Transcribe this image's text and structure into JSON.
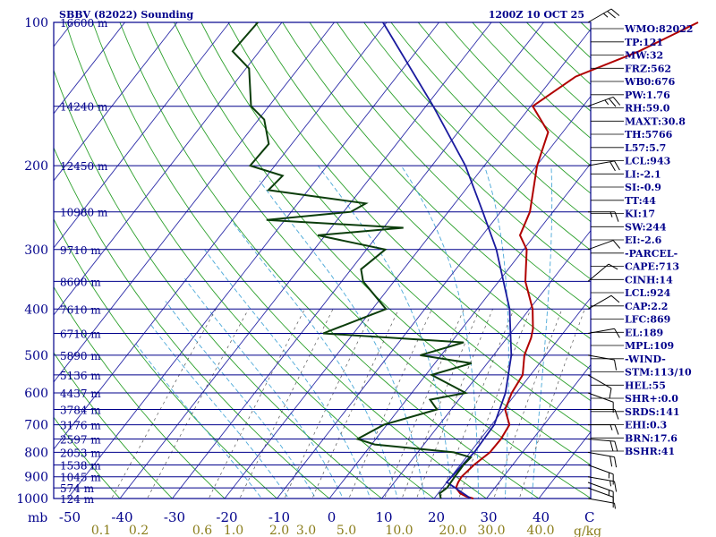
{
  "chart_data": {
    "type": "skew-t",
    "title": "SBBV (82022) Sounding",
    "valid_time": "1200Z 10 OCT 25",
    "y_axis_unit": "mb",
    "x_axis_unit": "C",
    "mixing_ratio_unit": "g/kg",
    "pressure_ticks": [
      "100",
      "200",
      "300",
      "400",
      "500",
      "600",
      "700",
      "800",
      "900",
      "1000"
    ],
    "height_labels": [
      {
        "p": 100,
        "label": "16600 m"
      },
      {
        "p": 150,
        "label": "14240 m"
      },
      {
        "p": 200,
        "label": "12450 m"
      },
      {
        "p": 250,
        "label": "10980 m"
      },
      {
        "p": 300,
        "label": "9710 m"
      },
      {
        "p": 350,
        "label": "8600 m"
      },
      {
        "p": 400,
        "label": "7610 m"
      },
      {
        "p": 450,
        "label": "6710 m"
      },
      {
        "p": 500,
        "label": "5890 m"
      },
      {
        "p": 550,
        "label": "5136 m"
      },
      {
        "p": 600,
        "label": "4437 m"
      },
      {
        "p": 650,
        "label": "3784 m"
      },
      {
        "p": 700,
        "label": "3176 m"
      },
      {
        "p": 750,
        "label": "2597 m"
      },
      {
        "p": 800,
        "label": "2053 m"
      },
      {
        "p": 850,
        "label": "1538 m"
      },
      {
        "p": 900,
        "label": "1045 m"
      },
      {
        "p": 950,
        "label": "574 m"
      },
      {
        "p": 1000,
        "label": "124 m"
      }
    ],
    "temp_ticks": [
      "-50",
      "-40",
      "-30",
      "-20",
      "-10",
      "0",
      "10",
      "20",
      "30",
      "40"
    ],
    "mixing_ratio_labels": [
      "0.1",
      "0.2",
      "0.6",
      "1.0",
      "2.0",
      "3.0",
      "5.0",
      "10.0",
      "20.0",
      "30.0",
      "40.0"
    ],
    "temperature": [
      {
        "p": 1000,
        "t": 27.5
      },
      {
        "p": 990,
        "t": 25.8
      },
      {
        "p": 975,
        "t": 24.2
      },
      {
        "p": 950,
        "t": 22.6
      },
      {
        "p": 925,
        "t": 22.2
      },
      {
        "p": 900,
        "t": 22.0
      },
      {
        "p": 850,
        "t": 22.6
      },
      {
        "p": 800,
        "t": 23.8
      },
      {
        "p": 750,
        "t": 23.9
      },
      {
        "p": 700,
        "t": 23.4
      },
      {
        "p": 650,
        "t": 20.3
      },
      {
        "p": 600,
        "t": 19.1
      },
      {
        "p": 550,
        "t": 18.5
      },
      {
        "p": 500,
        "t": 15.9
      },
      {
        "p": 460,
        "t": 14.6
      },
      {
        "p": 440,
        "t": 13.6
      },
      {
        "p": 400,
        "t": 10.6
      },
      {
        "p": 350,
        "t": 5.1
      },
      {
        "p": 300,
        "t": 0.6
      },
      {
        "p": 280,
        "t": -2.8
      },
      {
        "p": 250,
        "t": -4.4
      },
      {
        "p": 200,
        "t": -9.9
      },
      {
        "p": 170,
        "t": -12.8
      },
      {
        "p": 150,
        "t": -19.6
      },
      {
        "p": 130,
        "t": -15.8
      },
      {
        "p": 115,
        "t": -7.5
      },
      {
        "p": 100,
        "t": -0.5
      }
    ],
    "dewpoint": [
      {
        "p": 1000,
        "t": 21.3
      },
      {
        "p": 975,
        "t": 20.3
      },
      {
        "p": 950,
        "t": 20.9
      },
      {
        "p": 925,
        "t": 20.8
      },
      {
        "p": 900,
        "t": 20.7
      },
      {
        "p": 850,
        "t": 20.6
      },
      {
        "p": 820,
        "t": 20.9
      },
      {
        "p": 800,
        "t": 16.9
      },
      {
        "p": 770,
        "t": 0.6
      },
      {
        "p": 750,
        "t": -3.5
      },
      {
        "p": 700,
        "t": -0.6
      },
      {
        "p": 650,
        "t": 7.3
      },
      {
        "p": 620,
        "t": 4.5
      },
      {
        "p": 600,
        "t": 10.3
      },
      {
        "p": 550,
        "t": 1.1
      },
      {
        "p": 520,
        "t": 7.0
      },
      {
        "p": 500,
        "t": -4.0
      },
      {
        "p": 470,
        "t": 2.4
      },
      {
        "p": 450,
        "t": -25.8
      },
      {
        "p": 400,
        "t": -17.4
      },
      {
        "p": 350,
        "t": -25.9
      },
      {
        "p": 330,
        "t": -28.1
      },
      {
        "p": 300,
        "t": -26.4
      },
      {
        "p": 280,
        "t": -41.4
      },
      {
        "p": 270,
        "t": -26.2
      },
      {
        "p": 260,
        "t": -53.5
      },
      {
        "p": 250,
        "t": -38.6
      },
      {
        "p": 240,
        "t": -37.0
      },
      {
        "p": 225,
        "t": -57.6
      },
      {
        "p": 210,
        "t": -57.0
      },
      {
        "p": 200,
        "t": -64.7
      },
      {
        "p": 180,
        "t": -64.4
      },
      {
        "p": 160,
        "t": -68.9
      },
      {
        "p": 150,
        "t": -73.4
      },
      {
        "p": 125,
        "t": -79.4
      },
      {
        "p": 115,
        "t": -85.1
      },
      {
        "p": 100,
        "t": -84.6
      }
    ],
    "parcel": [
      {
        "p": 1000,
        "t": 27.0
      },
      {
        "p": 924,
        "t": 20.0
      },
      {
        "p": 850,
        "t": 20.4
      },
      {
        "p": 800,
        "t": 20.8
      },
      {
        "p": 700,
        "t": 20.5
      },
      {
        "p": 600,
        "t": 17.9
      },
      {
        "p": 500,
        "t": 13.4
      },
      {
        "p": 400,
        "t": 6.2
      },
      {
        "p": 300,
        "t": -5.2
      },
      {
        "p": 250,
        "t": -13.4
      },
      {
        "p": 200,
        "t": -23.6
      },
      {
        "p": 150,
        "t": -38.6
      },
      {
        "p": 100,
        "t": -60.7
      }
    ],
    "wind_barbs": [
      {
        "p": 1000,
        "dir": 100,
        "spd": 5
      },
      {
        "p": 950,
        "dir": 110,
        "spd": 10
      },
      {
        "p": 925,
        "dir": 110,
        "spd": 15
      },
      {
        "p": 900,
        "dir": 100,
        "spd": 15
      },
      {
        "p": 850,
        "dir": 110,
        "spd": 15
      },
      {
        "p": 800,
        "dir": 100,
        "spd": 20
      },
      {
        "p": 750,
        "dir": 95,
        "spd": 20
      },
      {
        "p": 700,
        "dir": 90,
        "spd": 15
      },
      {
        "p": 650,
        "dir": 90,
        "spd": 10
      },
      {
        "p": 600,
        "dir": 110,
        "spd": 10
      },
      {
        "p": 550,
        "dir": 120,
        "spd": 10
      },
      {
        "p": 500,
        "dir": 100,
        "spd": 10
      },
      {
        "p": 450,
        "dir": 80,
        "spd": 10
      },
      {
        "p": 400,
        "dir": 60,
        "spd": 10
      },
      {
        "p": 350,
        "dir": 50,
        "spd": 10
      },
      {
        "p": 300,
        "dir": 70,
        "spd": 10
      },
      {
        "p": 250,
        "dir": 90,
        "spd": 15
      },
      {
        "p": 200,
        "dir": 80,
        "spd": 20
      },
      {
        "p": 150,
        "dir": 70,
        "spd": 25
      },
      {
        "p": 100,
        "dir": 60,
        "spd": 25
      }
    ],
    "indices": [
      "WMO:82022",
      "TP:121",
      "MW:32",
      "FRZ:562",
      "WB0:676",
      "PW:1.76",
      "RH:59.0",
      "MAXT:30.8",
      "TH:5766",
      "L57:5.7",
      "LCL:943",
      "LI:-2.1",
      "SI:-0.9",
      "TT:44",
      "KI:17",
      "SW:244",
      "EI:-2.6",
      "-PARCEL-",
      "CAPE:713",
      "CINH:14",
      "LCL:924",
      "CAP:2.2",
      "LFC:869",
      "EL:189",
      "MPL:109",
      "-WIND-",
      "STM:113/10",
      "HEL:55",
      "SHR+:0.0",
      "SRDS:141",
      "EHI:0.3",
      "BRN:17.6",
      "BSHR:41"
    ],
    "colors": {
      "temperature": "#b00000",
      "dewpoint": "#0b3d0b",
      "parcel": "#1a1a9e",
      "isobar": "#00008b",
      "isotherm": "#2c2ca8",
      "dry_adiabat": "#2ca02c",
      "moist_adiabat": "#4aa8d8",
      "mixing_ratio": "#555555",
      "label_text": "#00008b",
      "mixing_label_text": "#8a7d1a"
    }
  }
}
